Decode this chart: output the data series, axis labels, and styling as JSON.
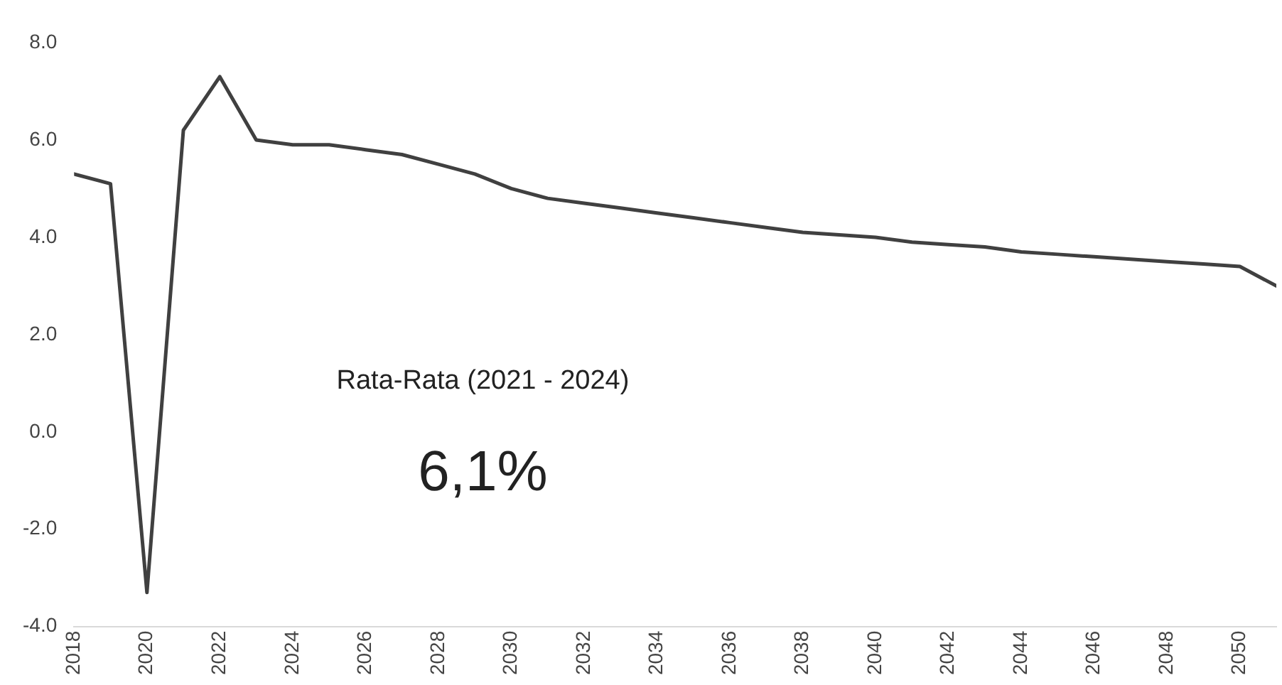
{
  "chart_data": {
    "type": "line",
    "x": [
      2018,
      2019,
      2020,
      2021,
      2022,
      2023,
      2024,
      2025,
      2026,
      2027,
      2028,
      2029,
      2030,
      2031,
      2032,
      2033,
      2034,
      2035,
      2036,
      2037,
      2038,
      2039,
      2040,
      2041,
      2042,
      2043,
      2044,
      2045,
      2046,
      2047,
      2048,
      2049,
      2050,
      2051
    ],
    "series": [
      {
        "color": "#404040",
        "values": [
          5.3,
          5.1,
          -3.3,
          6.2,
          7.3,
          6.0,
          5.9,
          5.9,
          5.8,
          5.7,
          5.5,
          5.3,
          5.0,
          4.8,
          4.7,
          4.6,
          4.5,
          4.4,
          4.3,
          4.2,
          4.1,
          4.05,
          4.0,
          3.9,
          3.85,
          3.8,
          3.7,
          3.65,
          3.6,
          3.55,
          3.5,
          3.45,
          3.4,
          3.0
        ]
      }
    ],
    "xlim": [
      2018,
      2051
    ],
    "xticks": [
      2018,
      2020,
      2022,
      2024,
      2026,
      2028,
      2030,
      2032,
      2034,
      2036,
      2038,
      2040,
      2042,
      2044,
      2046,
      2048,
      2050
    ],
    "ylim": [
      -4,
      8
    ],
    "yticks": [
      {
        "value": -4,
        "label": "-4.0"
      },
      {
        "value": -2,
        "label": "-2.0"
      },
      {
        "value": 0,
        "label": "0.0"
      },
      {
        "value": 2,
        "label": "2.0"
      },
      {
        "value": 4,
        "label": "4.0"
      },
      {
        "value": 6,
        "label": "6.0"
      },
      {
        "value": 8,
        "label": "8.0"
      }
    ],
    "annotations": [
      "Rata-Rata (2021 - 2024)",
      "6,1%"
    ],
    "grid": false,
    "legend": false,
    "marker": "none",
    "line_style": "solid"
  }
}
